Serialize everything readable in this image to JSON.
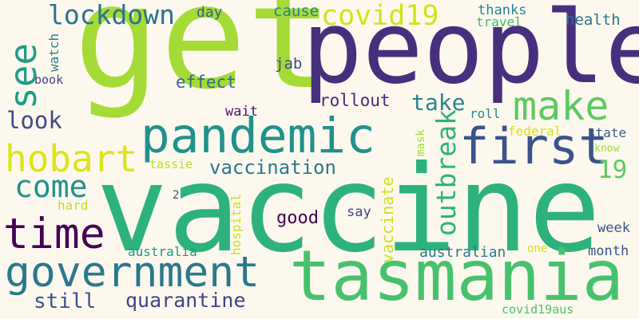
{
  "words": {
    "get": {
      "text": "get",
      "color": "#a5db36"
    },
    "people": {
      "text": "people",
      "color": "#472f7d"
    },
    "vaccine": {
      "text": "vaccine",
      "color": "#2db27d"
    },
    "tasmania": {
      "text": "tasmania",
      "color": "#48c16e"
    },
    "pandemic": {
      "text": "pandemic",
      "color": "#21918c"
    },
    "first": {
      "text": "first",
      "color": "#3b528b"
    },
    "government": {
      "text": "government",
      "color": "#2a788e"
    },
    "time": {
      "text": "time",
      "color": "#440154"
    },
    "make": {
      "text": "make",
      "color": "#5ec962"
    },
    "hobart": {
      "text": "hobart",
      "color": "#dde318"
    },
    "see": {
      "text": "see",
      "color": "#1f9e89"
    },
    "lockdown": {
      "text": "lockdown",
      "color": "#2c728e"
    },
    "covid19": {
      "text": "covid19",
      "color": "#d2e21b"
    },
    "come": {
      "text": "come",
      "color": "#21918c"
    },
    "outbreak": {
      "text": "outbreak",
      "color": "#2db27d"
    },
    "take": {
      "text": "take",
      "color": "#25858e"
    },
    "look": {
      "text": "look",
      "color": "#3e4a89"
    },
    "vaccination": {
      "text": "vaccination",
      "color": "#2a788e"
    },
    "quarantine": {
      "text": "quarantine",
      "color": "#414487"
    },
    "still": {
      "text": "still",
      "color": "#3b528b"
    },
    "nineteen": {
      "text": "19",
      "color": "#5ec962"
    },
    "effect": {
      "text": "effect",
      "color": "#31688e"
    },
    "rollout": {
      "text": "rollout",
      "color": "#472a7a"
    },
    "cause": {
      "text": "cause",
      "color": "#25848e"
    },
    "day": {
      "text": "day",
      "color": "#355f8d"
    },
    "jab": {
      "text": "jab",
      "color": "#3e4989"
    },
    "good": {
      "text": "good",
      "color": "#440154"
    },
    "say": {
      "text": "say",
      "color": "#404688"
    },
    "hard": {
      "text": "hard",
      "color": "#bddf26"
    },
    "watch": {
      "text": "watch",
      "color": "#26828e"
    },
    "book": {
      "text": "book",
      "color": "#424086"
    },
    "thanks": {
      "text": "thanks",
      "color": "#26828e"
    },
    "travel": {
      "text": "travel",
      "color": "#3aba76"
    },
    "health": {
      "text": "health",
      "color": "#2c728e"
    },
    "wait": {
      "text": "wait",
      "color": "#481769"
    },
    "roll": {
      "text": "roll",
      "color": "#23898e"
    },
    "federal": {
      "text": "federal",
      "color": "#d8e219"
    },
    "state": {
      "text": "state",
      "color": "#365c8d"
    },
    "know": {
      "text": "know",
      "color": "#a0da39"
    },
    "mask": {
      "text": "mask",
      "color": "#a0da39"
    },
    "tassie": {
      "text": "tassie",
      "color": "#b5de2b"
    },
    "two": {
      "text": "2",
      "color": "#3b528b"
    },
    "hospital": {
      "text": "hospital",
      "color": "#cae11f"
    },
    "vaccinate": {
      "text": "vaccinate",
      "color": "#cae11f"
    },
    "australia": {
      "text": "australia",
      "color": "#1f988b"
    },
    "australian": {
      "text": "australian",
      "color": "#2a788e"
    },
    "one": {
      "text": "one",
      "color": "#d0e11c"
    },
    "week": {
      "text": "week",
      "color": "#3b528b"
    },
    "month": {
      "text": "month",
      "color": "#3b528b"
    },
    "covid19aus": {
      "text": "covid19aus",
      "color": "#4ac16d"
    }
  }
}
